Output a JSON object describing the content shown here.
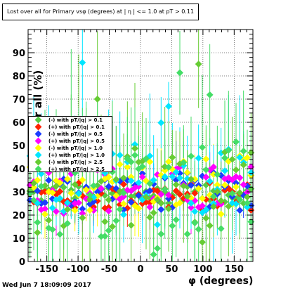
{
  "chart_data": {
    "type": "scatter",
    "title": "Lost over all for Primary vsφ (degrees) at | η | <= 1.0 at pT > 0.11",
    "xlabel": "φ (degrees)",
    "ylabel": "Lost over all (%)",
    "xlim": [
      -180,
      180
    ],
    "ylim": [
      0,
      100
    ],
    "x_ticks": [
      -150,
      -100,
      -50,
      0,
      50,
      100,
      150
    ],
    "y_ticks": [
      0,
      10,
      20,
      30,
      40,
      50,
      60,
      70,
      80,
      90
    ],
    "grid": true,
    "legend_position": "left-middle",
    "series": [
      {
        "name": "(-) with pT/|q| > 0.1",
        "color": "#55cc44",
        "baseline": 29
      },
      {
        "name": "(+) with pT/|q| > 0.1",
        "color": "#ff2200",
        "baseline": 28
      },
      {
        "name": "(-) with pT/|q| > 0.5",
        "color": "#1a3cff",
        "baseline": 30
      },
      {
        "name": "(+) with pT/|q| > 0.5",
        "color": "#ff00ff",
        "baseline": 31
      },
      {
        "name": "(-) with pT/|q| > 1.0",
        "color": "#ffff00",
        "baseline": 33
      },
      {
        "name": "(+) with pT/|q| > 1.0",
        "color": "#00e5ff",
        "baseline": 34
      },
      {
        "name": "(-) with pT/|q| > 2.5",
        "color": "#66cc33",
        "baseline": 31
      },
      {
        "name": "(+) with pT/|q| > 2.5",
        "color": "#44dd66",
        "baseline": 30
      }
    ]
  },
  "timestamp": "Wed Jun  7 18:09:09 2017"
}
